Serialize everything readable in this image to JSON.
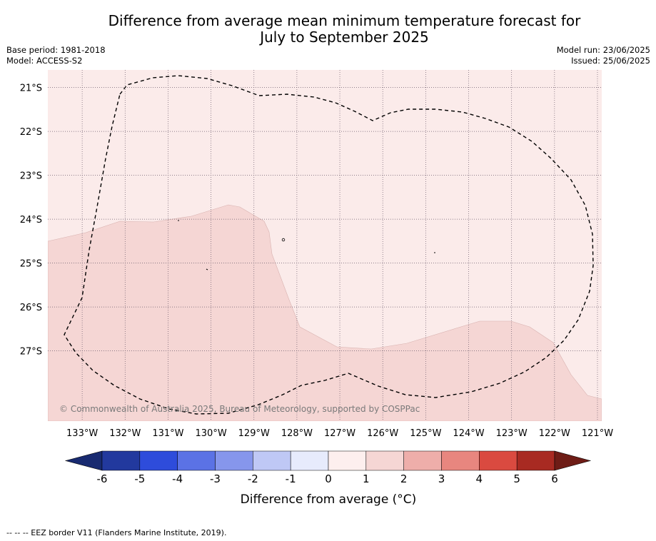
{
  "title": {
    "line1": "Difference from average mean minimum temperature forecast for",
    "line2": "July to September 2025"
  },
  "meta": {
    "base_period": "Base period: 1981-2018",
    "model": "Model: ACCESS-S2",
    "model_run": "Model run: 23/06/2025",
    "issued": "Issued: 25/06/2025"
  },
  "map": {
    "lon_range": [
      -133.8,
      -120.9
    ],
    "lat_range": [
      -28.6,
      -20.6
    ],
    "lon_ticks": [
      {
        "value": -133,
        "label": "133°W"
      },
      {
        "value": -132,
        "label": "132°W"
      },
      {
        "value": -131,
        "label": "131°W"
      },
      {
        "value": -130,
        "label": "130°W"
      },
      {
        "value": -129,
        "label": "129°W"
      },
      {
        "value": -128,
        "label": "128°W"
      },
      {
        "value": -127,
        "label": "127°W"
      },
      {
        "value": -126,
        "label": "126°W"
      },
      {
        "value": -125,
        "label": "125°W"
      },
      {
        "value": -124,
        "label": "124°W"
      },
      {
        "value": -123,
        "label": "123°W"
      },
      {
        "value": -122,
        "label": "122°W"
      },
      {
        "value": -121,
        "label": "121°W"
      }
    ],
    "lat_ticks": [
      {
        "value": -21,
        "label": "21°S"
      },
      {
        "value": -22,
        "label": "22°S"
      },
      {
        "value": -23,
        "label": "23°S"
      },
      {
        "value": -24,
        "label": "24°S"
      },
      {
        "value": -25,
        "label": "25°S"
      },
      {
        "value": -26,
        "label": "26°S"
      },
      {
        "value": -27,
        "label": "27°S"
      }
    ],
    "copyright": "© Commonwealth of Australia 2025, Bureau of Meteorology, supported by COSPPac",
    "regions": [
      {
        "level": "0 to 1",
        "color": "#fbebea"
      },
      {
        "level": "1 to 2",
        "color": "#f5d6d4"
      }
    ]
  },
  "colorbar": {
    "label": "Difference from average (°C)",
    "ticks": [
      "-6",
      "-5",
      "-4",
      "-3",
      "-2",
      "-1",
      "0",
      "1",
      "2",
      "3",
      "4",
      "5",
      "6"
    ],
    "colors": [
      "#22399e",
      "#2e4cdb",
      "#5b72e5",
      "#8696ec",
      "#bfc8f5",
      "#e7ebfc",
      "#fdefee",
      "#f5d6d4",
      "#eeaeaa",
      "#e8867f",
      "#da4a40",
      "#a82a22"
    ],
    "under_color": "#182a70",
    "over_color": "#6e1c16"
  },
  "footnote": "--  --  -- EEZ border V11 (Flanders Marine Institute, 2019)."
}
